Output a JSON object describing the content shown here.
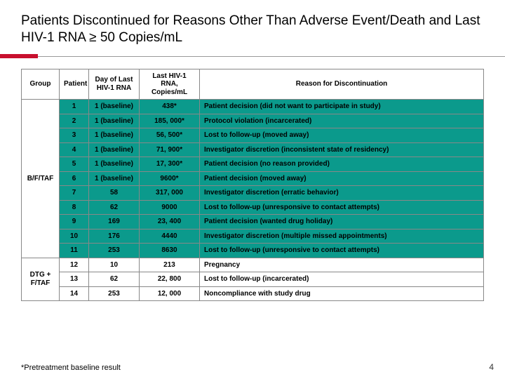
{
  "title": "Patients Discontinued for Reasons Other Than Adverse Event/Death and Last HIV-1 RNA ≥ 50 Copies/mL",
  "accent_color": "#c8102e",
  "rule_color": "#9a9a9a",
  "teal_color": "#0b9a8c",
  "headers": {
    "group": "Group",
    "patient": "Patient",
    "day": "Day of Last HIV-1 RNA",
    "rna": "Last HIV-1 RNA, Copies/mL",
    "reason": "Reason for Discontinuation"
  },
  "groups": [
    {
      "label": "B/F/TAF",
      "highlight": true,
      "rows": [
        {
          "patient": "1",
          "day": "1 (baseline)",
          "rna": "438*",
          "reason": "Patient decision (did not want to participate in study)"
        },
        {
          "patient": "2",
          "day": "1 (baseline)",
          "rna": "185, 000*",
          "reason": "Protocol violation (incarcerated)"
        },
        {
          "patient": "3",
          "day": "1 (baseline)",
          "rna": "56, 500*",
          "reason": "Lost to follow-up (moved away)"
        },
        {
          "patient": "4",
          "day": "1 (baseline)",
          "rna": "71, 900*",
          "reason": "Investigator discretion (inconsistent state of residency)"
        },
        {
          "patient": "5",
          "day": "1 (baseline)",
          "rna": "17, 300*",
          "reason": "Patient decision (no reason provided)"
        },
        {
          "patient": "6",
          "day": "1 (baseline)",
          "rna": "9600*",
          "reason": "Patient decision (moved away)"
        },
        {
          "patient": "7",
          "day": "58",
          "rna": "317, 000",
          "reason": "Investigator discretion (erratic behavior)"
        },
        {
          "patient": "8",
          "day": "62",
          "rna": "9000",
          "reason": "Lost to follow-up (unresponsive to contact attempts)"
        },
        {
          "patient": "9",
          "day": "169",
          "rna": "23, 400",
          "reason": "Patient decision (wanted drug holiday)"
        },
        {
          "patient": "10",
          "day": "176",
          "rna": "4440",
          "reason": "Investigator discretion (multiple missed appointments)"
        },
        {
          "patient": "11",
          "day": "253",
          "rna": "8630",
          "reason": "Lost to follow-up (unresponsive to contact attempts)"
        }
      ]
    },
    {
      "label": "DTG + F/TAF",
      "highlight": false,
      "rows": [
        {
          "patient": "12",
          "day": "10",
          "rna": "213",
          "reason": "Pregnancy"
        },
        {
          "patient": "13",
          "day": "62",
          "rna": "22, 800",
          "reason": "Lost to follow-up (incarcerated)"
        },
        {
          "patient": "14",
          "day": "253",
          "rna": "12, 000",
          "reason": "Noncompliance with study drug"
        }
      ]
    }
  ],
  "footnote": "*Pretreatment baseline result",
  "slide_number": "4",
  "font": {
    "header_size_pt": 10,
    "cell_size_pt": 10,
    "title_size_pt": 19
  }
}
